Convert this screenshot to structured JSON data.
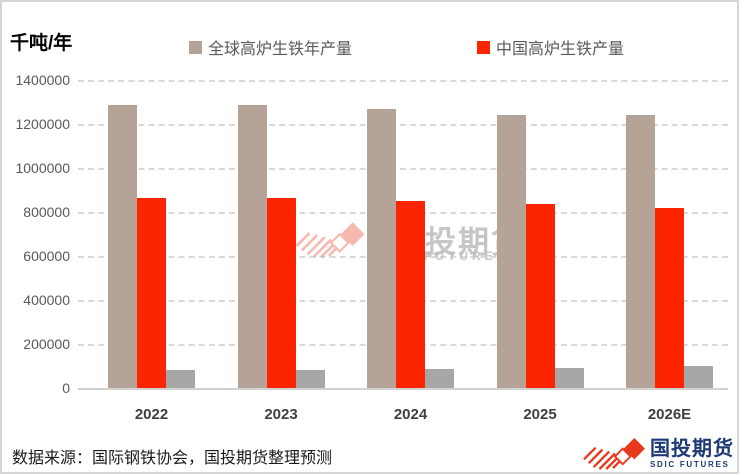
{
  "unit_label": "千吨/年",
  "source_note": "数据来源：国际钢铁协会，国投期货整理预测",
  "legend": {
    "items": [
      {
        "label": "全球高炉生铁年产量",
        "color": "#b4a396"
      },
      {
        "label": "中国高炉生铁产量",
        "color": "#fd2500"
      }
    ]
  },
  "chart_data": {
    "type": "bar",
    "title": "",
    "ylabel": "千吨/年",
    "xlabel": "",
    "categories": [
      "2022",
      "2023",
      "2024",
      "2025",
      "2026E"
    ],
    "series": [
      {
        "name": "全球高炉生铁年产量",
        "color": "#b4a396",
        "legend_visible": true,
        "values": [
          1285000,
          1285000,
          1270000,
          1240000,
          1240000
        ]
      },
      {
        "name": "中国高炉生铁产量",
        "color": "#fd2500",
        "legend_visible": true,
        "values": [
          865000,
          865000,
          850000,
          835000,
          820000
        ]
      },
      {
        "name": "",
        "color": "#a7a7a7",
        "legend_visible": false,
        "values": [
          80000,
          83000,
          87000,
          92000,
          99000
        ]
      }
    ],
    "ylim": [
      0,
      1400000
    ],
    "ytick_interval": 200000,
    "yticks": [
      1400000,
      1200000,
      1000000,
      800000,
      600000,
      400000,
      200000,
      0
    ],
    "grid": "horizontal-dashed",
    "legend_position": "top"
  },
  "watermark": {
    "cn": "国投期货",
    "en": "FUTURES"
  },
  "logo": {
    "cn": "国投期货",
    "en": "SDIC FUTURES"
  }
}
